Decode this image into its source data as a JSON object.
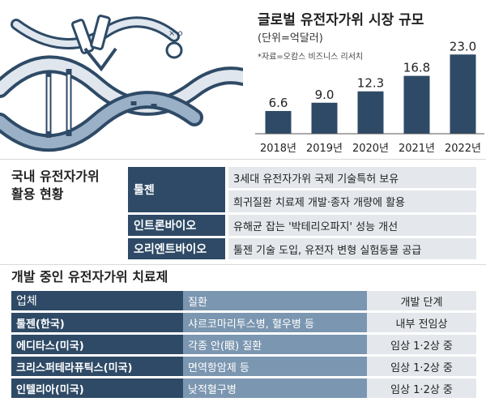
{
  "chart_data": {
    "type": "bar",
    "title": "글로벌 유전자가위 시장 규모",
    "unit": "(단위=억달러)",
    "source": "*자료=오캄스 비즈니스 리서치",
    "categories": [
      "2018년",
      "2019년",
      "2020년",
      "2021년",
      "2022년"
    ],
    "values": [
      6.6,
      9.0,
      12.3,
      16.8,
      23.0
    ],
    "value_labels": [
      "6.6",
      "9.0",
      "12.3",
      "16.8",
      "23.0"
    ],
    "ylim": [
      0,
      24
    ],
    "bar_color": "#2e4a66",
    "grid": false,
    "legend": "none"
  },
  "domestic": {
    "title_line1": "국내 유전자가위",
    "title_line2": "활용 현황",
    "orgs": [
      {
        "name": "툴젠",
        "items": [
          "3세대 유전자가위 국제 기술특허 보유",
          "희귀질환 치료제 개발·종자 개량에 활용"
        ]
      },
      {
        "name": "인트론바이오",
        "items": [
          "유해균 잡는 '박테리오파지' 성능 개선"
        ]
      },
      {
        "name": "오리엔트바이오",
        "items": [
          "툴젠 기술 도입, 유전자 변형 실험동물 공급"
        ]
      }
    ]
  },
  "therapies": {
    "title": "개발 중인 유전자가위 치료제",
    "headers": {
      "company": "업체",
      "disease": "질환",
      "stage": "개발 단계"
    },
    "rows": [
      {
        "company": "툴젠(한국)",
        "disease": "샤르코마리투스병, 혈우병 등",
        "stage": "내부 전임상"
      },
      {
        "company": "에디타스(미국)",
        "disease": "각종 안(眼) 질환",
        "stage": "임상 1·2상 중"
      },
      {
        "company": "크리스퍼테라퓨틱스(미국)",
        "disease": "면역항암제 등",
        "stage": "임상 1·2상 중"
      },
      {
        "company": "인텔리아(미국)",
        "disease": "낮적혈구병",
        "stage": "임상 1·2상 중"
      }
    ]
  },
  "colors": {
    "navy": "#2e4a66",
    "steel": "#7b96b0",
    "light": "#e4e8ec"
  },
  "icons": [
    "dna-helix-illustration",
    "gene-scissors-icon"
  ]
}
